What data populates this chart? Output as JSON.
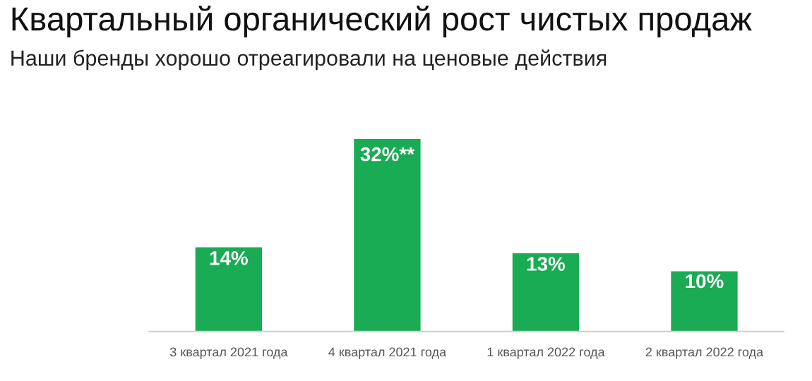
{
  "chart_data": {
    "type": "bar",
    "title": "Квартальный органический рост чистых продаж",
    "subtitle": "Наши бренды хорошо отреагировали на ценовые действия",
    "categories": [
      "3 квартал 2021 года",
      "4 квартал 2021 года",
      "1 квартал 2022 года",
      "2 квартал 2022 года"
    ],
    "values": [
      14,
      32,
      13,
      10
    ],
    "color": "#1aab55",
    "value_labels": [
      "14%",
      "32%**",
      "13%",
      "10%"
    ],
    "grid": false,
    "legend": false
  }
}
